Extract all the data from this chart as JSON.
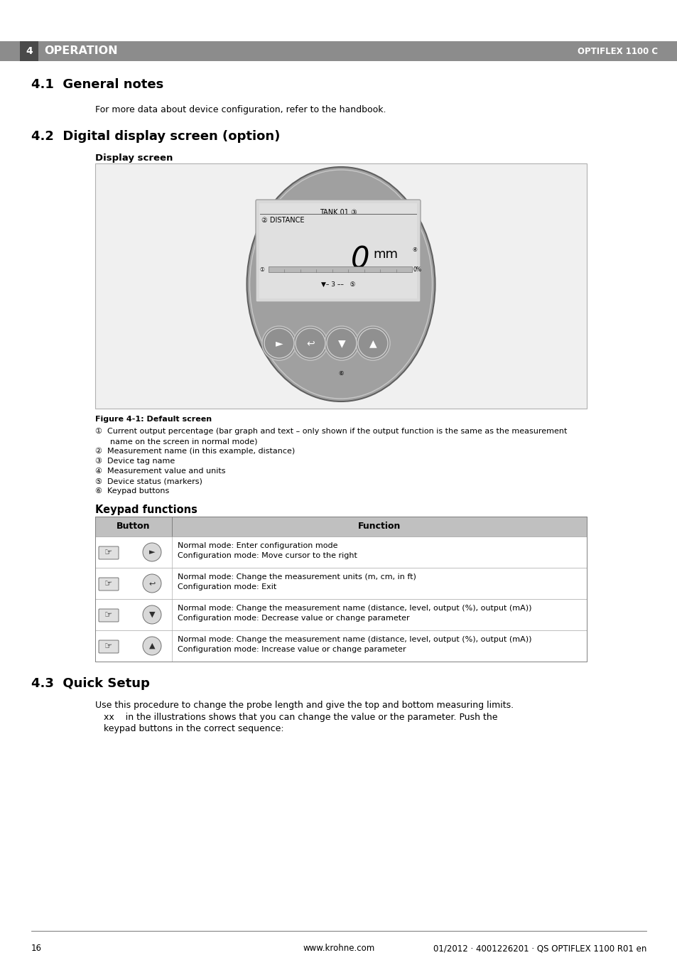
{
  "page_bg": "#ffffff",
  "header_bg": "#8c8c8c",
  "header_text": "OPERATION",
  "header_number": "4",
  "header_right": "OPTIFLEX 1100 C",
  "header_number_bg": "#4a4a4a",
  "section_41_title": "4.1  General notes",
  "section_41_body": "For more data about device configuration, refer to the handbook.",
  "section_42_title": "4.2  Digital display screen (option)",
  "display_screen_label": "Display screen",
  "figure_caption": "Figure 4-1: Default screen",
  "note1_a": "①  Current output percentage (bar graph and text – only shown if the output function is the same as the measurement",
  "note1_b": "      name on the screen in normal mode)",
  "note2": "②  Measurement name (in this example, distance)",
  "note3": "③  Device tag name",
  "note4": "④  Measurement value and units",
  "note5": "⑤  Device status (markers)",
  "note6": "⑥  Keypad buttons",
  "keypad_title": "Keypad functions",
  "table_header_button": "Button",
  "table_header_function": "Function",
  "row_funcs": [
    "Normal mode: Enter configuration mode\nConfiguration mode: Move cursor to the right",
    "Normal mode: Change the measurement units (m, cm, in ft)\nConfiguration mode: Exit",
    "Normal mode: Change the measurement name (distance, level, output (%), output (mA))\nConfiguration mode: Decrease value or change parameter",
    "Normal mode: Change the measurement name (distance, level, output (%), output (mA))\nConfiguration mode: Increase value or change parameter"
  ],
  "row_btn_symbols": [
    "►",
    "↩",
    "▼",
    "▲"
  ],
  "section_43_title": "4.3  Quick Setup",
  "section_43_body1": "Use this procedure to change the probe length and give the top and bottom measuring limits.",
  "section_43_body2": "   xx    in the illustrations shows that you can change the value or the parameter. Push the",
  "section_43_body3": "   keypad buttons in the correct sequence:",
  "footer_page": "16",
  "footer_url": "www.krohne.com",
  "footer_right": "01/2012 · 4001226201 · QS OPTIFLEX 1100 R01 en",
  "display_tank_text": "TANK 01 ③",
  "display_distance_text": "② DISTANCE",
  "display_pct_text": "0%",
  "display_status_text": "▼– – 3 – –   ⑤"
}
